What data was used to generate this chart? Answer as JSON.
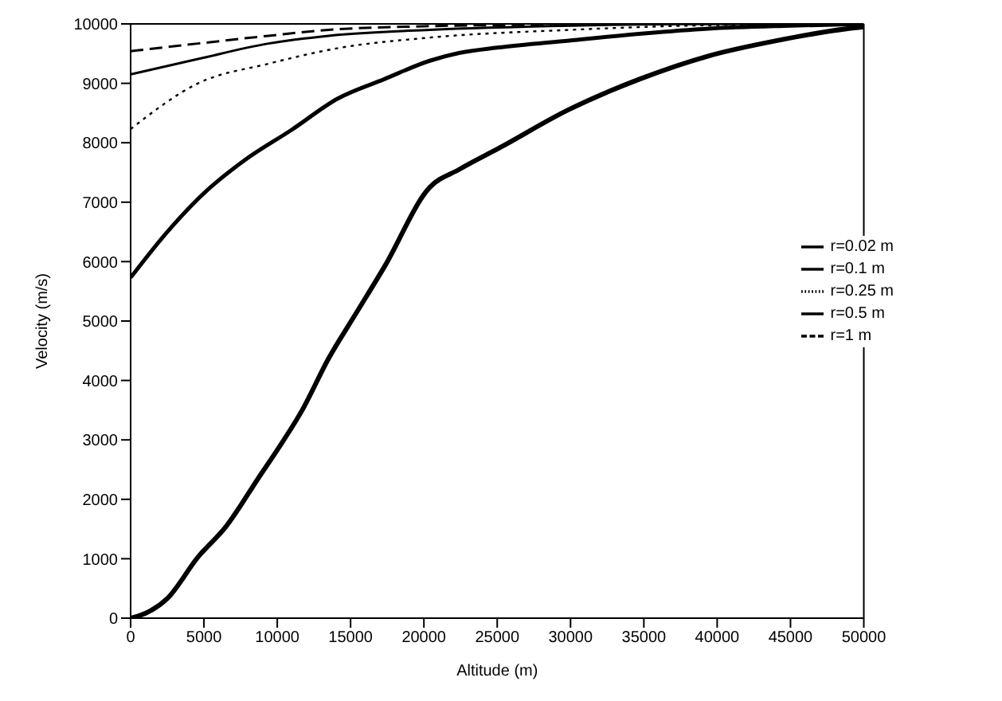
{
  "chart_data": {
    "type": "line",
    "xlabel": "Altitude (m)",
    "ylabel": "Velocity (m/s)",
    "xlim": [
      0,
      50000
    ],
    "xticks": [
      0,
      5000,
      10000,
      15000,
      20000,
      25000,
      30000,
      35000,
      40000,
      45000,
      50000
    ],
    "ylim": [
      0,
      10000
    ],
    "yticks": [
      0,
      1000,
      2000,
      3000,
      4000,
      5000,
      6000,
      7000,
      8000,
      9000,
      10000
    ],
    "legend": "top right",
    "marker": "none",
    "series": [
      {
        "name": "r=0.02 m",
        "color": "#000000",
        "line_style": "solid",
        "x": [
          0,
          1000,
          2500,
          4600,
          6500,
          8800,
          10000,
          11700,
          13500,
          15400,
          17300,
          20400,
          22400,
          25200,
          29900,
          34700,
          39400,
          44100,
          48900,
          50000
        ],
        "values": [
          0,
          80,
          330,
          1030,
          1540,
          2390,
          2830,
          3500,
          4370,
          5140,
          5910,
          7250,
          7550,
          7920,
          8560,
          9070,
          9460,
          9720,
          9920,
          9950
        ]
      },
      {
        "name": "r=0.1 m",
        "color": "#000000",
        "line_style": "solid",
        "x": [
          0,
          2500,
          5000,
          7800,
          11000,
          14100,
          17300,
          20400,
          22400,
          25000,
          29900,
          35000,
          39400,
          45000,
          50000
        ],
        "values": [
          5730,
          6500,
          7150,
          7710,
          8220,
          8740,
          9070,
          9380,
          9510,
          9600,
          9720,
          9840,
          9920,
          9970,
          10000
        ]
      },
      {
        "name": "r=0.25 m",
        "color": "#000000",
        "line_style": "dotted",
        "x": [
          0,
          4600,
          9400,
          14100,
          20400,
          30000,
          40000,
          50000
        ],
        "values": [
          8230,
          9000,
          9330,
          9590,
          9770,
          9900,
          9980,
          10000
        ]
      },
      {
        "name": "r=0.5 m",
        "color": "#000000",
        "line_style": "solid",
        "x": [
          0,
          4600,
          9400,
          13500,
          20400,
          30000,
          40000,
          50000
        ],
        "values": [
          9150,
          9410,
          9670,
          9800,
          9900,
          9970,
          10000,
          10000
        ]
      },
      {
        "name": "r=1 m",
        "color": "#000000",
        "line_style": "dashed",
        "x": [
          0,
          4600,
          9400,
          13500,
          20000,
          30000,
          40000,
          50000
        ],
        "values": [
          9540,
          9670,
          9800,
          9900,
          9960,
          9990,
          10000,
          10000
        ]
      }
    ]
  }
}
